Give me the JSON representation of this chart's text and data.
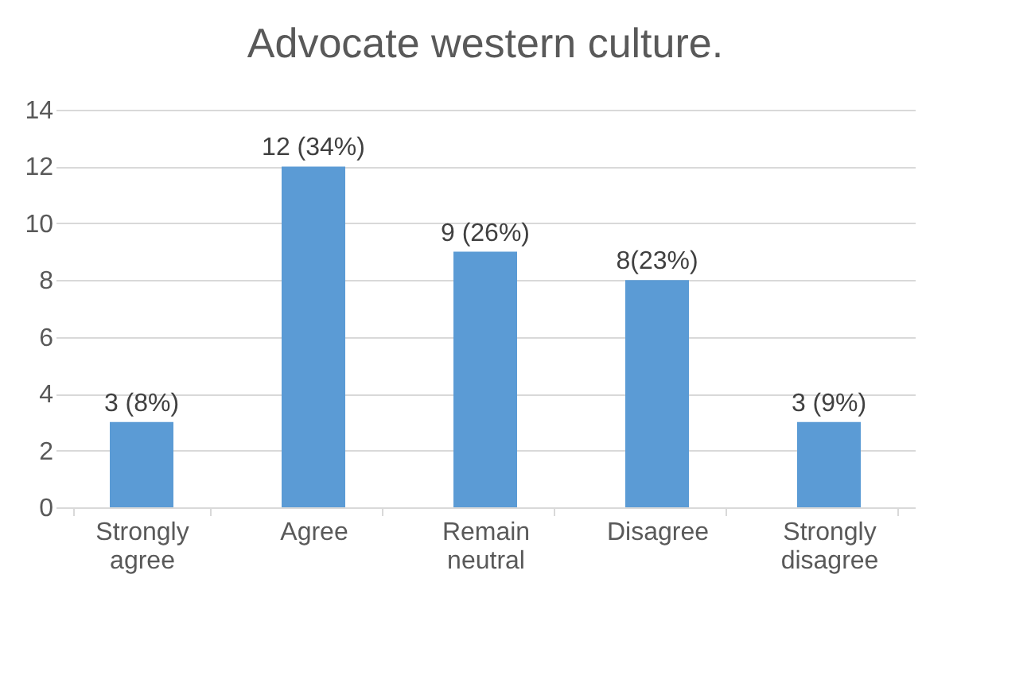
{
  "chart_data": {
    "type": "bar",
    "title": "Advocate western culture.",
    "categories": [
      "Strongly agree",
      "Agree",
      "Remain neutral",
      "Disagree",
      "Strongly disagree"
    ],
    "values": [
      3,
      12,
      9,
      8,
      3
    ],
    "value_labels": [
      "3 (8%)",
      "12 (34%)",
      "9 (26%)",
      "8(23%)",
      "3 (9%)"
    ],
    "color": "#5b9bd5",
    "ylim": [
      0,
      14
    ],
    "yticks": [
      0,
      2,
      4,
      6,
      8,
      10,
      12,
      14
    ],
    "grid": "y"
  }
}
